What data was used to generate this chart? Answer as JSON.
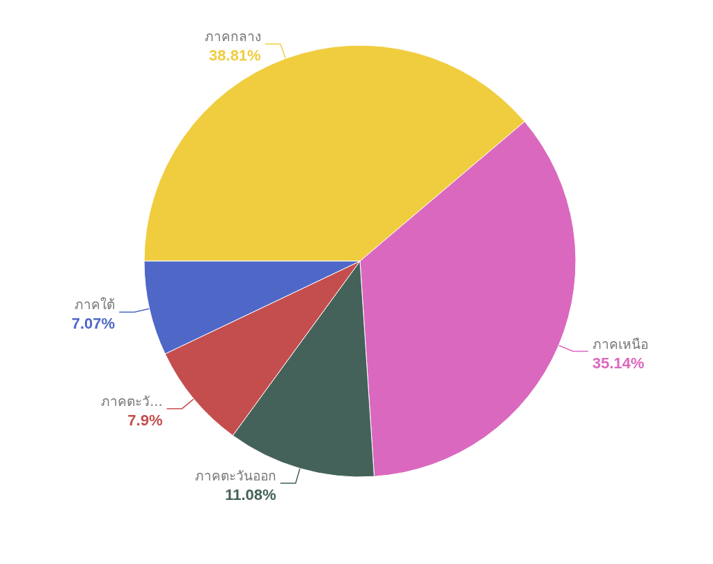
{
  "chart_data": {
    "type": "pie",
    "categories": [
      "ภาคกลาง",
      "ภาคเหนือ",
      "ภาคตะวันออก",
      "ภาคตะวั...",
      "ภาคใต้"
    ],
    "values": [
      38.81,
      35.14,
      11.08,
      7.9,
      7.07
    ],
    "colors": [
      "#f0cd3f",
      "#da68bf",
      "#44625a",
      "#c44e4e",
      "#4f67c7"
    ],
    "value_labels": [
      "38.81%",
      "35.14%",
      "11.08%",
      "7.9%",
      "7.07%"
    ]
  }
}
